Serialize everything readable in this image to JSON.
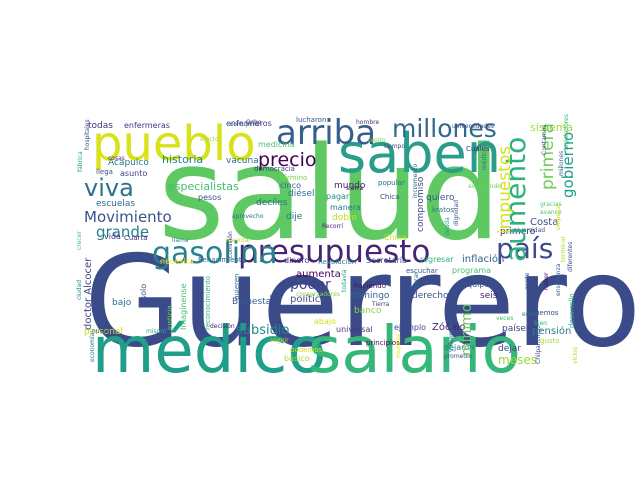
{
  "words": [
    {
      "text": "Guerrero",
      "color": "#3b4b8a"
    },
    {
      "text": "salud",
      "color": "#5ec962"
    },
    {
      "text": "médico",
      "color": "#1f9e89"
    },
    {
      "text": "salario",
      "color": "#35b779"
    },
    {
      "text": "saben",
      "color": "#2a9d8a"
    },
    {
      "text": "pueblo",
      "color": "#d8e219"
    },
    {
      "text": "presupuesto",
      "color": "#482475"
    },
    {
      "text": "gasolina",
      "color": "#26828e"
    },
    {
      "text": "arriba",
      "color": "#355f8d"
    },
    {
      "text": "millones",
      "color": "#31688e"
    },
    {
      "text": "aumento",
      "color": "#2db27d"
    },
    {
      "text": "país",
      "color": "#3e4a89"
    },
    {
      "text": "viva",
      "color": "#2c728e"
    },
    {
      "text": "precio",
      "color": "#440154"
    },
    {
      "text": "Movimiento",
      "color": "#3b528b"
    },
    {
      "text": "grande",
      "color": "#287d8e"
    },
    {
      "text": "impuestos",
      "color": "#d2e21b"
    },
    {
      "text": "primera",
      "color": "#6ece58"
    },
    {
      "text": "gobierno",
      "color": "#1fa088"
    },
    {
      "text": "sistema",
      "color": "#a5db36"
    },
    {
      "text": "especialistas",
      "color": "#3fbc73"
    },
    {
      "text": "historia",
      "color": "#25848e"
    },
    {
      "text": "escuelas",
      "color": "#2e6e8e"
    },
    {
      "text": "todas",
      "color": "#472d7b"
    },
    {
      "text": "enfermeras",
      "color": "#453781"
    },
    {
      "text": "enfermeros",
      "color": "#453882"
    },
    {
      "text": "lucharon",
      "color": "#39558c"
    },
    {
      "text": "hombre",
      "color": "#46337e"
    },
    {
      "text": "Acapulco",
      "color": "#2a788e"
    },
    {
      "text": "asunto",
      "color": "#414487"
    },
    {
      "text": "llega",
      "color": "#3d4e8a"
    },
    {
      "text": "cosas",
      "color": "#443a83"
    },
    {
      "text": "vacuna",
      "color": "#2f6b8e"
    },
    {
      "text": "medicina",
      "color": "#4ac16d"
    },
    {
      "text": "democracia",
      "color": "#433e85"
    },
    {
      "text": "término",
      "color": "#84d44b"
    },
    {
      "text": "repito",
      "color": "#7ad151"
    },
    {
      "text": "Cuáles",
      "color": "#482878"
    },
    {
      "text": "tiempo",
      "color": "#3f4788"
    },
    {
      "text": "cinco",
      "color": "#34618d"
    },
    {
      "text": "diésel",
      "color": "#2c718e"
    },
    {
      "text": "decíles",
      "color": "#2d708e"
    },
    {
      "text": "pesos",
      "color": "#3c4f8a"
    },
    {
      "text": "mundo",
      "color": "#481f70"
    },
    {
      "text": "pagar",
      "color": "#21908d"
    },
    {
      "text": "doble",
      "color": "#bddf26"
    },
    {
      "text": "dije",
      "color": "#2b748e"
    },
    {
      "text": "manera",
      "color": "#297a8e"
    },
    {
      "text": "quiero",
      "color": "#38588c"
    },
    {
      "text": "kratos",
      "color": "#2e6f8e"
    },
    {
      "text": "China",
      "color": "#c2df23"
    },
    {
      "text": "compromiso",
      "color": "#3e4989"
    },
    {
      "text": "Costa",
      "color": "#3d4d8a"
    },
    {
      "text": "primero",
      "color": "#481b6d"
    },
    {
      "text": "inflación",
      "color": "#33638d"
    },
    {
      "text": "regresar",
      "color": "#2ab07f"
    },
    {
      "text": "programa",
      "color": "#44bf70"
    },
    {
      "text": "equipos",
      "color": "#3a538b"
    },
    {
      "text": "necesita",
      "color": "#fde725"
    },
    {
      "text": "dinero",
      "color": "#472a7a"
    },
    {
      "text": "Revolución",
      "color": "#24868e"
    },
    {
      "text": "Secretaría",
      "color": "#3c508b"
    },
    {
      "text": "poder",
      "color": "#424086"
    },
    {
      "text": "aumenta",
      "color": "#440256"
    },
    {
      "text": "política",
      "color": "#3e4c8a"
    },
    {
      "text": "domingo",
      "color": "#33628d"
    },
    {
      "text": "haciendo",
      "color": "#471365"
    },
    {
      "text": "derecho",
      "color": "#3b518b"
    },
    {
      "text": "seis",
      "color": "#481a6c"
    },
    {
      "text": "Bienestar",
      "color": "#355e8d"
    },
    {
      "text": "banco",
      "color": "#8bd646"
    },
    {
      "text": "abajo",
      "color": "#d0e11c"
    },
    {
      "text": "universal",
      "color": "#46327e"
    },
    {
      "text": "ejemplo",
      "color": "#3f4889"
    },
    {
      "text": "Zócalo",
      "color": "#482576"
    },
    {
      "text": "países",
      "color": "#433d84"
    },
    {
      "text": "pensión",
      "color": "#297b8e"
    },
    {
      "text": "gusto",
      "color": "#a8db34"
    },
    {
      "text": "dejar",
      "color": "#3e4a89"
    },
    {
      "text": "meses",
      "color": "#98d83e"
    },
    {
      "text": "subsidio",
      "color": "#25858e"
    },
    {
      "text": "mínimo",
      "color": "#6ccd5a"
    },
    {
      "text": "doctor Alcocer",
      "color": "#3f4788"
    },
    {
      "text": "personal",
      "color": "#c5e021"
    },
    {
      "text": "bajo",
      "color": "#2d708e"
    },
    {
      "text": "solo",
      "color": "#3b528b"
    },
    {
      "text": "Renacimiento",
      "color": "#31688e"
    },
    {
      "text": "reconocimiento",
      "color": "#32b67a"
    },
    {
      "text": "quieren",
      "color": "#2f6c8e"
    },
    {
      "text": "universidad",
      "color": "#3a548c"
    },
    {
      "text": "universidades",
      "color": "#3f4889"
    },
    {
      "text": "principios",
      "color": "#46075a"
    },
    {
      "text": "dejaron",
      "color": "#2a788e"
    },
    {
      "text": "promedio",
      "color": "#3e4c8a"
    },
    {
      "text": "básico",
      "color": "#9fda3a"
    },
    {
      "text": "podemos",
      "color": "#cae11f"
    },
    {
      "text": "seguir",
      "color": "#c0df25"
    },
    {
      "text": "Tierra",
      "color": "#443983"
    },
    {
      "text": "Demos",
      "color": "#3d4e8a"
    },
    {
      "text": "bien",
      "color": "#2cb17e"
    },
    {
      "text": "veces",
      "color": "#3bbb75"
    },
    {
      "text": "escuchar",
      "color": "#3a538b"
    },
    {
      "text": "enero",
      "color": "#2c738e"
    },
    {
      "text": "desarrollo",
      "color": "#25ac82"
    },
    {
      "text": "vida",
      "color": "#443983"
    },
    {
      "text": "Cuarta",
      "color": "#472c7a"
    },
    {
      "text": "Imagínense",
      "color": "#48c16e"
    },
    {
      "text": "justicia",
      "color": "#75d054"
    },
    {
      "text": "corrupción",
      "color": "#2e6e8e"
    },
    {
      "text": "Ocho",
      "color": "#433e85"
    },
    {
      "text": "efecto",
      "color": "#a2da37"
    },
    {
      "text": "fábrica",
      "color": "#20a386"
    },
    {
      "text": "aprovecho",
      "color": "#2d708e"
    },
    {
      "text": "llama",
      "color": "#23898e"
    },
    {
      "text": "levantar",
      "color": "#b5de2b"
    },
    {
      "text": "comisión",
      "color": "#414287"
    },
    {
      "text": "economía",
      "color": "#2a788e"
    },
    {
      "text": "mismo",
      "color": "#27ad81"
    },
    {
      "text": "nueve",
      "color": "#3b528b"
    },
    {
      "text": "decisión",
      "color": "#482071"
    },
    {
      "text": "puntos",
      "color": "#3f4788"
    },
    {
      "text": "conservadores",
      "color": "#86d549"
    },
    {
      "text": "sierra",
      "color": "#440154"
    },
    {
      "text": "Chica",
      "color": "#3d4d8a"
    },
    {
      "text": "popular",
      "color": "#2f6b8e"
    },
    {
      "text": "Recorrí",
      "color": "#482475"
    },
    {
      "text": "todavía",
      "color": "#1f9a8a"
    },
    {
      "text": "incremento",
      "color": "#2d708e"
    },
    {
      "text": "avanzando",
      "color": "#67cc5c"
    },
    {
      "text": "lograr",
      "color": "#2e6d8e"
    },
    {
      "text": "legisladores",
      "color": "#37b878"
    },
    {
      "text": "hospitales",
      "color": "#3d4e8a"
    },
    {
      "text": "gracias",
      "color": "#56c667"
    },
    {
      "text": "avance",
      "color": "#4ec36b"
    },
    {
      "text": "empezar",
      "color": "#c8e020"
    },
    {
      "text": "dignidad",
      "color": "#3e4a89"
    },
    {
      "text": "mujeres",
      "color": "#e5e419"
    },
    {
      "text": "terminar",
      "color": "#b2dd2d"
    },
    {
      "text": "Contamos",
      "color": "#3a548c"
    },
    {
      "text": "millones",
      "color": "#31688e"
    },
    {
      "text": "vicios",
      "color": "#a0da39"
    },
    {
      "text": "médicos",
      "color": "#2c728e"
    },
    {
      "text": "crecer",
      "color": "#46c06f"
    },
    {
      "text": "diferentes",
      "color": "#3b518b"
    },
    {
      "text": "enseñanza",
      "color": "#34618d"
    },
    {
      "text": "ciudad",
      "color": "#23888e"
    },
    {
      "text": "deuda",
      "color": "#1e9b8a"
    },
    {
      "text": "querido",
      "color": "#5cc863"
    },
    {
      "text": "volvemos",
      "color": "#2b758e"
    },
    {
      "text": "haber",
      "color": "#471365"
    },
    {
      "text": "gente",
      "color": "#3f4889"
    },
    {
      "text": "Chilpancingo",
      "color": "#3c508b"
    }
  ]
}
